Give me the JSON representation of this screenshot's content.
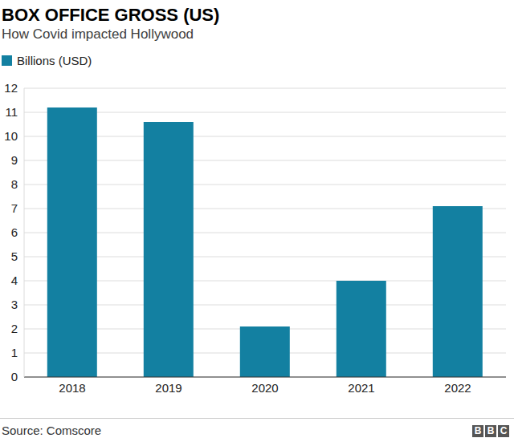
{
  "chart_data": {
    "type": "bar",
    "title": "BOX OFFICE GROSS (US)",
    "subtitle": "How Covid impacted Hollywood",
    "categories": [
      "2018",
      "2019",
      "2020",
      "2021",
      "2022"
    ],
    "series": [
      {
        "name": "Billions (USD)",
        "color": "#1380a1",
        "values": [
          11.2,
          10.6,
          2.1,
          4.0,
          7.1
        ]
      }
    ],
    "ylim": [
      0,
      12
    ],
    "yticks": [
      0,
      1,
      2,
      3,
      4,
      5,
      6,
      7,
      8,
      9,
      10,
      11,
      12
    ],
    "grid": true,
    "legend": "top-left",
    "source": "Source: Comscore",
    "credit": "BBC"
  }
}
